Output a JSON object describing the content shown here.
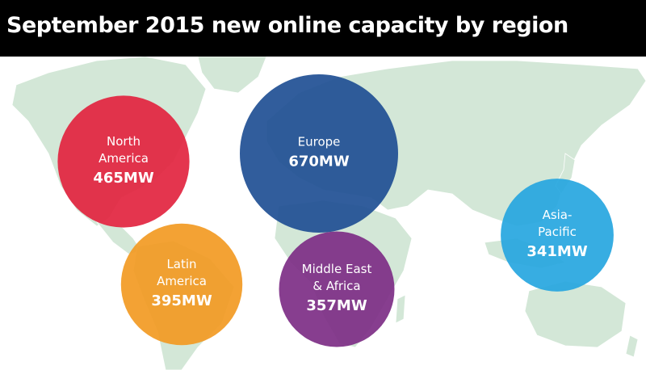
{
  "title": "September 2015 new online capacity by region",
  "colors": {
    "title_bg": "#000000",
    "title_text": "#ffffff",
    "map_land": "#d3e7d7",
    "map_lines": "#ffffff"
  },
  "chart_data": {
    "type": "bubble",
    "title": "September 2015 new online capacity by region",
    "unit": "MW",
    "series": [
      {
        "region_lines": [
          "North",
          "America"
        ],
        "value": 465,
        "value_label": "465MW",
        "color": "#e2243f"
      },
      {
        "region_lines": [
          "Europe"
        ],
        "value": 670,
        "value_label": "670MW",
        "color": "#1f4f94"
      },
      {
        "region_lines": [
          "Latin",
          "America"
        ],
        "value": 395,
        "value_label": "395MW",
        "color": "#f29a23"
      },
      {
        "region_lines": [
          "Middle East",
          "& Africa"
        ],
        "value": 357,
        "value_label": "357MW",
        "color": "#7d2e86"
      },
      {
        "region_lines": [
          "Asia-",
          "Pacific"
        ],
        "value": 341,
        "value_label": "341MW",
        "color": "#26a6e0"
      }
    ]
  }
}
